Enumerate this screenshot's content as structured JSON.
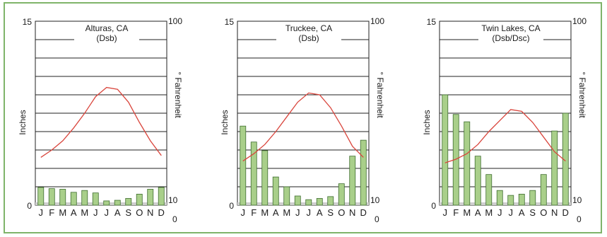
{
  "colors": {
    "frame": "#7fb46a",
    "bar_fill": "#a9cf8a",
    "bar_edge": "#3f6e2f",
    "temp_line": "#d9453c",
    "grid": "#222222"
  },
  "chart_data": [
    {
      "type": "bar",
      "title": "Alturas, CA",
      "subtitle": "(Dsb)",
      "categories": [
        "J",
        "F",
        "M",
        "A",
        "M",
        "J",
        "J",
        "A",
        "S",
        "O",
        "N",
        "D"
      ],
      "y_left_label": "Inches",
      "y_right_label": "° Fahrenheit",
      "y_left_ticks": [
        "15",
        "0"
      ],
      "y_right_ticks": [
        "100",
        "10",
        "0"
      ],
      "ylim_left": [
        0,
        15
      ],
      "ylim_right": [
        0,
        100
      ],
      "grid": true,
      "precip_in": [
        1.45,
        1.35,
        1.3,
        1.05,
        1.2,
        1.0,
        0.35,
        0.4,
        0.55,
        0.9,
        1.3,
        1.45
      ],
      "temp_f": [
        26,
        30,
        35,
        42,
        50,
        59,
        64,
        63,
        56,
        45,
        35,
        27
      ]
    },
    {
      "type": "bar",
      "title": "Truckee, CA",
      "subtitle": "(Dsb)",
      "categories": [
        "J",
        "F",
        "M",
        "A",
        "M",
        "J",
        "J",
        "A",
        "S",
        "O",
        "N",
        "D"
      ],
      "y_left_label": "Inches",
      "y_right_label": "° Fahrenheit",
      "y_left_ticks": [
        "15",
        "0"
      ],
      "y_right_ticks": [
        "100",
        "10",
        "0"
      ],
      "ylim_left": [
        0,
        15
      ],
      "ylim_right": [
        0,
        100
      ],
      "grid": true,
      "precip_in": [
        6.45,
        5.15,
        4.45,
        2.3,
        1.5,
        0.75,
        0.45,
        0.55,
        0.7,
        1.75,
        4.0,
        5.3
      ],
      "temp_f": [
        24,
        28,
        33,
        40,
        48,
        56,
        61,
        60,
        53,
        43,
        32,
        26
      ]
    },
    {
      "type": "bar",
      "title": "Twin Lakes, CA",
      "subtitle": "(Dsb/Dsc)",
      "categories": [
        "J",
        "F",
        "M",
        "A",
        "M",
        "J",
        "J",
        "A",
        "S",
        "O",
        "N",
        "D"
      ],
      "y_left_label": "Inches",
      "y_right_label": "° Fahrenheit",
      "y_left_ticks": [
        "15",
        "0"
      ],
      "y_right_ticks": [
        "100",
        "10",
        "0"
      ],
      "ylim_left": [
        0,
        15
      ],
      "ylim_right": [
        0,
        100
      ],
      "grid": true,
      "precip_in": [
        9.0,
        7.4,
        6.8,
        4.0,
        2.5,
        1.2,
        0.8,
        0.9,
        1.2,
        2.5,
        6.05,
        7.5
      ],
      "temp_f": [
        23,
        25,
        28,
        33,
        40,
        46,
        52,
        51,
        45,
        37,
        29,
        24
      ]
    }
  ]
}
